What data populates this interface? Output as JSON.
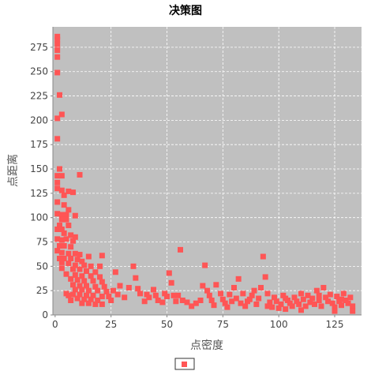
{
  "chart_data": {
    "type": "scatter",
    "title": "决策图",
    "xlabel": "点密度",
    "ylabel": "点距离",
    "xlim": [
      -1,
      137
    ],
    "ylim": [
      0,
      296
    ],
    "xticks": [
      0,
      25,
      50,
      75,
      100,
      125
    ],
    "yticks": [
      0,
      25,
      50,
      75,
      100,
      125,
      150,
      175,
      200,
      225,
      250,
      275
    ],
    "grid": true,
    "plot_background": "#c0c0c0",
    "legend": "bottom-center",
    "series": [
      {
        "color": "#ff5555",
        "marker": "square",
        "points": [
          [
            1,
            286
          ],
          [
            1,
            283
          ],
          [
            1,
            278
          ],
          [
            1,
            272
          ],
          [
            1,
            265
          ],
          [
            1,
            249
          ],
          [
            2,
            226
          ],
          [
            3,
            206
          ],
          [
            1,
            202
          ],
          [
            1,
            181
          ],
          [
            2,
            150
          ],
          [
            1,
            143
          ],
          [
            3,
            143
          ],
          [
            11,
            144
          ],
          [
            1,
            136
          ],
          [
            1,
            130
          ],
          [
            3,
            128
          ],
          [
            6,
            127
          ],
          [
            8,
            126
          ],
          [
            4,
            123
          ],
          [
            1,
            116
          ],
          [
            4,
            113
          ],
          [
            6,
            108
          ],
          [
            1,
            104
          ],
          [
            3,
            103
          ],
          [
            5,
            103
          ],
          [
            9,
            102
          ],
          [
            3,
            98
          ],
          [
            5,
            98
          ],
          [
            2,
            92
          ],
          [
            6,
            92
          ],
          [
            1,
            88
          ],
          [
            3,
            88
          ],
          [
            4,
            84
          ],
          [
            7,
            82
          ],
          [
            9,
            80
          ],
          [
            1,
            78
          ],
          [
            3,
            77
          ],
          [
            5,
            78
          ],
          [
            8,
            76
          ],
          [
            2,
            71
          ],
          [
            4,
            71
          ],
          [
            7,
            70
          ],
          [
            1,
            66
          ],
          [
            3,
            64
          ],
          [
            6,
            63
          ],
          [
            9,
            63
          ],
          [
            11,
            62
          ],
          [
            15,
            60
          ],
          [
            2,
            58
          ],
          [
            4,
            58
          ],
          [
            7,
            58
          ],
          [
            10,
            57
          ],
          [
            12,
            55
          ],
          [
            3,
            54
          ],
          [
            6,
            53
          ],
          [
            9,
            51
          ],
          [
            13,
            51
          ],
          [
            16,
            50
          ],
          [
            3,
            48
          ],
          [
            8,
            47
          ],
          [
            11,
            47
          ],
          [
            14,
            45
          ],
          [
            18,
            44
          ],
          [
            5,
            42
          ],
          [
            9,
            41
          ],
          [
            12,
            40
          ],
          [
            16,
            40
          ],
          [
            20,
            39
          ],
          [
            7,
            37
          ],
          [
            10,
            36
          ],
          [
            13,
            35
          ],
          [
            17,
            35
          ],
          [
            21,
            34
          ],
          [
            8,
            31
          ],
          [
            11,
            30
          ],
          [
            14,
            30
          ],
          [
            18,
            29
          ],
          [
            22,
            29
          ],
          [
            9,
            26
          ],
          [
            12,
            26
          ],
          [
            15,
            25
          ],
          [
            19,
            25
          ],
          [
            23,
            24
          ],
          [
            5,
            22
          ],
          [
            8,
            21
          ],
          [
            11,
            21
          ],
          [
            14,
            20
          ],
          [
            17,
            20
          ],
          [
            21,
            19
          ],
          [
            24,
            19
          ],
          [
            10,
            17
          ],
          [
            13,
            16
          ],
          [
            16,
            16
          ],
          [
            19,
            15
          ],
          [
            25,
            15
          ],
          [
            12,
            12
          ],
          [
            15,
            12
          ],
          [
            18,
            11
          ],
          [
            21,
            11
          ],
          [
            6,
            20
          ],
          [
            7,
            15
          ],
          [
            20,
            50
          ],
          [
            21,
            61
          ],
          [
            27,
            44
          ],
          [
            29,
            30
          ],
          [
            26,
            25
          ],
          [
            28,
            21
          ],
          [
            31,
            18
          ],
          [
            33,
            28
          ],
          [
            35,
            50
          ],
          [
            36,
            38
          ],
          [
            37,
            27
          ],
          [
            38,
            22
          ],
          [
            40,
            14
          ],
          [
            41,
            21
          ],
          [
            42,
            18
          ],
          [
            44,
            26
          ],
          [
            45,
            20
          ],
          [
            46,
            15
          ],
          [
            48,
            13
          ],
          [
            49,
            22
          ],
          [
            50,
            19
          ],
          [
            51,
            43
          ],
          [
            52,
            33
          ],
          [
            53,
            20
          ],
          [
            54,
            14
          ],
          [
            55,
            20
          ],
          [
            56,
            67
          ],
          [
            57,
            15
          ],
          [
            59,
            13
          ],
          [
            61,
            9
          ],
          [
            63,
            12
          ],
          [
            65,
            15
          ],
          [
            66,
            30
          ],
          [
            67,
            51
          ],
          [
            68,
            25
          ],
          [
            69,
            20
          ],
          [
            70,
            15
          ],
          [
            71,
            10
          ],
          [
            72,
            31
          ],
          [
            74,
            22
          ],
          [
            75,
            16
          ],
          [
            76,
            12
          ],
          [
            77,
            8
          ],
          [
            78,
            21
          ],
          [
            79,
            14
          ],
          [
            80,
            28
          ],
          [
            81,
            17
          ],
          [
            82,
            37
          ],
          [
            83,
            12
          ],
          [
            84,
            22
          ],
          [
            85,
            9
          ],
          [
            86,
            14
          ],
          [
            87,
            16
          ],
          [
            88,
            20
          ],
          [
            89,
            25
          ],
          [
            90,
            11
          ],
          [
            91,
            17
          ],
          [
            92,
            28
          ],
          [
            93,
            60
          ],
          [
            94,
            39
          ],
          [
            95,
            22
          ],
          [
            96,
            13
          ],
          [
            97,
            8
          ],
          [
            98,
            18
          ],
          [
            99,
            14
          ],
          [
            100,
            7
          ],
          [
            101,
            11
          ],
          [
            102,
            20
          ],
          [
            103,
            6
          ],
          [
            104,
            15
          ],
          [
            105,
            12
          ],
          [
            106,
            9
          ],
          [
            107,
            18
          ],
          [
            108,
            14
          ],
          [
            109,
            11
          ],
          [
            110,
            22
          ],
          [
            111,
            16
          ],
          [
            112,
            9
          ],
          [
            113,
            20
          ],
          [
            114,
            13
          ],
          [
            115,
            17
          ],
          [
            116,
            11
          ],
          [
            117,
            25
          ],
          [
            118,
            15
          ],
          [
            119,
            9
          ],
          [
            120,
            28
          ],
          [
            121,
            18
          ],
          [
            122,
            14
          ],
          [
            123,
            21
          ],
          [
            124,
            12
          ],
          [
            125,
            8
          ],
          [
            126,
            19
          ],
          [
            127,
            14
          ],
          [
            128,
            10
          ],
          [
            129,
            22
          ],
          [
            130,
            15
          ],
          [
            131,
            12
          ],
          [
            132,
            18
          ],
          [
            133,
            9
          ],
          [
            133,
            4
          ],
          [
            95,
            9
          ],
          [
            110,
            5
          ],
          [
            125,
            4
          ],
          [
            103,
            17
          ],
          [
            118,
            20
          ],
          [
            128,
            16
          ]
        ]
      }
    ]
  }
}
